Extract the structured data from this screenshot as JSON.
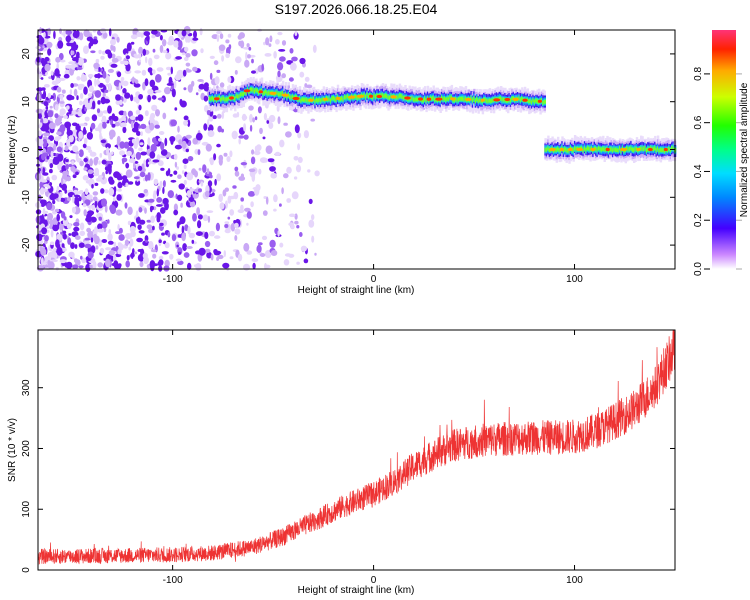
{
  "page": {
    "title": "S197.2026.066.18.25.E04"
  },
  "chart_data": [
    {
      "type": "heatmap",
      "xlabel": "Height of straight line (km)",
      "ylabel": "Frequency (Hz)",
      "xlim": [
        -167,
        150
      ],
      "ylim": [
        -25,
        25
      ],
      "xticks": [
        -100,
        0,
        100
      ],
      "yticks": [
        -20,
        -10,
        0,
        10,
        20
      ],
      "colorbar": {
        "label": "Normalized spectral amplitude",
        "range": [
          0,
          0.98
        ],
        "ticks": [
          0.0,
          0.2,
          0.4,
          0.6,
          0.8
        ],
        "tick_labels": [
          "0.0",
          "0.2",
          "0.4",
          "0.6",
          "0.8"
        ]
      },
      "signal": {
        "noise_region_x": [
          -167,
          -40
        ],
        "upper_band": {
          "x_start": -82,
          "x_end": 85,
          "frequency_points": [
            [
              -82,
              10.5
            ],
            [
              -70,
              10.8
            ],
            [
              -62,
              12.5
            ],
            [
              -55,
              12.0
            ],
            [
              -45,
              11.5
            ],
            [
              -35,
              10.2
            ],
            [
              -20,
              10.6
            ],
            [
              -5,
              11.2
            ],
            [
              10,
              11.0
            ],
            [
              25,
              10.5
            ],
            [
              40,
              10.6
            ],
            [
              55,
              10.3
            ],
            [
              70,
              10.5
            ],
            [
              85,
              10.0
            ]
          ]
        },
        "lower_band": {
          "x_start": 85,
          "x_end": 150,
          "frequency": 0.0
        }
      }
    },
    {
      "type": "line",
      "xlabel": "Height of straight line (km)",
      "ylabel": "SNR (10 * v/v)",
      "xlim": [
        -167,
        150
      ],
      "ylim": [
        0,
        395
      ],
      "xticks": [
        -100,
        0,
        100
      ],
      "yticks": [
        0,
        100,
        200,
        300
      ],
      "series": [
        {
          "color": "#ee3333",
          "trend": [
            [
              -167,
              22
            ],
            [
              -140,
              23
            ],
            [
              -120,
              24
            ],
            [
              -100,
              25
            ],
            [
              -80,
              28
            ],
            [
              -60,
              38
            ],
            [
              -45,
              55
            ],
            [
              -30,
              80
            ],
            [
              -15,
              105
            ],
            [
              0,
              125
            ],
            [
              10,
              145
            ],
            [
              20,
              170
            ],
            [
              30,
              190
            ],
            [
              40,
              205
            ],
            [
              50,
              212
            ],
            [
              60,
              215
            ],
            [
              70,
              217
            ],
            [
              80,
              218
            ],
            [
              90,
              218
            ],
            [
              100,
              220
            ],
            [
              110,
              228
            ],
            [
              120,
              245
            ],
            [
              130,
              265
            ],
            [
              140,
              300
            ],
            [
              150,
              365
            ]
          ],
          "noise_amplitude": 18
        }
      ]
    }
  ]
}
